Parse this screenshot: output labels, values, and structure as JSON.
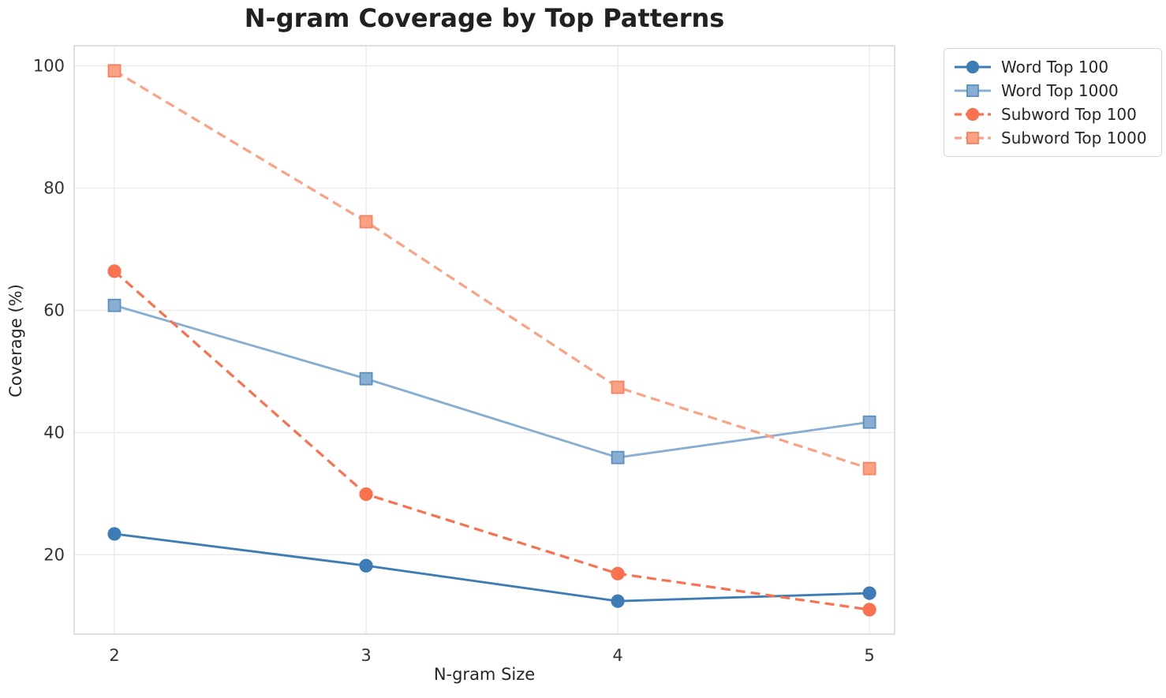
{
  "chart_data": {
    "type": "line",
    "title": "N-gram Coverage by Top Patterns",
    "xlabel": "N-gram Size",
    "ylabel": "Coverage (%)",
    "x": [
      2,
      3,
      4,
      5
    ],
    "xticks": [
      "2",
      "3",
      "4",
      "5"
    ],
    "yticks": [
      "20",
      "40",
      "60",
      "80",
      "100"
    ],
    "xtick_values": [
      2,
      3,
      4,
      5
    ],
    "ytick_values": [
      20,
      40,
      60,
      80,
      100
    ],
    "xlim": [
      1.84,
      5.1
    ],
    "ylim": [
      7.0,
      103.3
    ],
    "grid": true,
    "legend_position": "outside-upper-right",
    "series": [
      {
        "name": "Word Top 100",
        "values": [
          23.4,
          18.2,
          12.4,
          13.7
        ],
        "color": "#3d7cb5",
        "edge_color": "#3d7cb5",
        "line_style": "solid",
        "marker": "circle"
      },
      {
        "name": "Word Top 1000",
        "values": [
          60.8,
          48.8,
          35.9,
          41.7
        ],
        "color": "#88aed2",
        "edge_color": "#5a8fc0",
        "line_style": "solid",
        "marker": "square"
      },
      {
        "name": "Subword Top 100",
        "values": [
          66.4,
          29.9,
          16.9,
          11.0
        ],
        "color": "#f9714e",
        "edge_color": "#f9714e",
        "line_style": "dashed",
        "marker": "circle"
      },
      {
        "name": "Subword Top 1000",
        "values": [
          99.2,
          74.5,
          47.4,
          34.1
        ],
        "color": "#fba285",
        "edge_color": "#f8815f",
        "line_style": "dashed",
        "marker": "square"
      }
    ],
    "style": {
      "grid_color": "#e9e9e9",
      "spine_color": "#d6d6d6",
      "tick_label_color": "#333333",
      "title_color": "#212121",
      "background_color": "#ffffff"
    }
  }
}
